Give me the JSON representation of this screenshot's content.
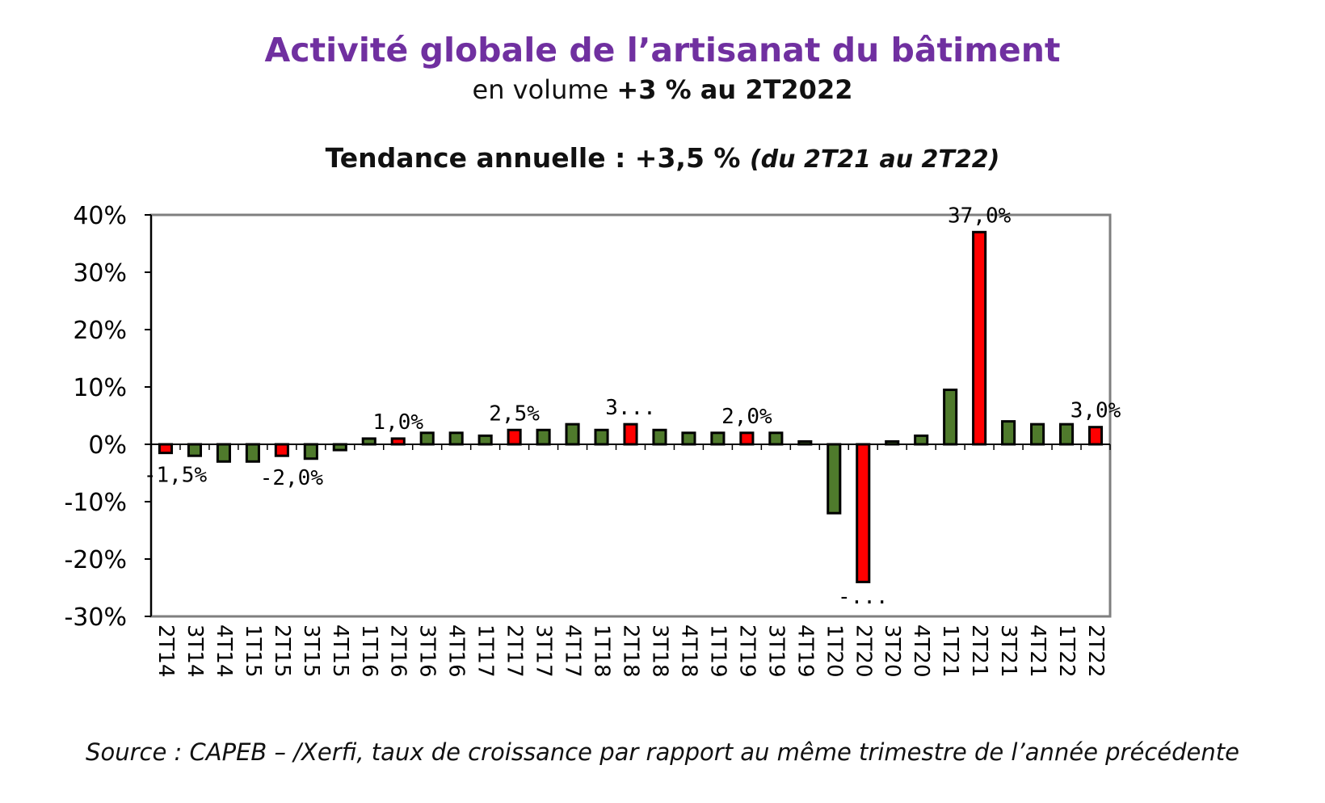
{
  "header": {
    "title": "Activité globale de l’artisanat du bâtiment",
    "subtitle_prefix": "en volume ",
    "subtitle_strong": "+3 % au 2T2022",
    "trend_main": "Tendance annuelle : +3,5 % ",
    "trend_paren": "(du 2T21 au 2T22)"
  },
  "footer": {
    "source": "Source : CAPEB – /Xerfi, taux de croissance par rapport au même trimestre de l’année précédente"
  },
  "colors": {
    "title": "#7030a0",
    "green": "#4f7a2c",
    "red": "#ff0000",
    "frame": "#7f7f7f"
  },
  "chart_data": {
    "type": "bar",
    "title": "",
    "xlabel": "",
    "ylabel": "",
    "ylim": [
      -30,
      40
    ],
    "yticks": [
      40,
      30,
      20,
      10,
      0,
      -10,
      -20,
      -30
    ],
    "ytick_labels": [
      "40%",
      "30%",
      "20%",
      "10%",
      "0%",
      "-10%",
      "-20%",
      "-30%"
    ],
    "grid": false,
    "categories": [
      "2T14",
      "3T14",
      "4T14",
      "1T15",
      "2T15",
      "3T15",
      "4T15",
      "1T16",
      "2T16",
      "3T16",
      "4T16",
      "1T17",
      "2T17",
      "3T17",
      "4T17",
      "1T18",
      "2T18",
      "3T18",
      "4T18",
      "1T19",
      "2T19",
      "3T19",
      "4T19",
      "1T20",
      "2T20",
      "3T20",
      "4T20",
      "1T21",
      "2T21",
      "3T21",
      "4T21",
      "1T22",
      "2T22"
    ],
    "values": [
      -1.5,
      -2.0,
      -3.0,
      -3.0,
      -2.0,
      -2.5,
      -1.0,
      1.0,
      1.0,
      2.0,
      2.0,
      1.5,
      2.5,
      2.5,
      3.5,
      2.5,
      3.5,
      2.5,
      2.0,
      2.0,
      2.0,
      2.0,
      0.5,
      -12.0,
      -24.0,
      0.5,
      1.5,
      9.5,
      37.0,
      4.0,
      3.5,
      3.5,
      3.0
    ],
    "bar_colors": [
      "red",
      "green",
      "green",
      "green",
      "red",
      "green",
      "green",
      "green",
      "red",
      "green",
      "green",
      "green",
      "red",
      "green",
      "green",
      "green",
      "red",
      "green",
      "green",
      "green",
      "red",
      "green",
      "green",
      "green",
      "red",
      "green",
      "green",
      "green",
      "red",
      "green",
      "green",
      "green",
      "red"
    ],
    "data_labels": [
      {
        "index": 0,
        "text": "-1,5%"
      },
      {
        "index": 4,
        "text": "-2,0%"
      },
      {
        "index": 8,
        "text": "1,0%"
      },
      {
        "index": 12,
        "text": "2,5%"
      },
      {
        "index": 16,
        "text": "3..."
      },
      {
        "index": 20,
        "text": "2,0%"
      },
      {
        "index": 24,
        "text": "-..."
      },
      {
        "index": 28,
        "text": "37,0%"
      },
      {
        "index": 32,
        "text": "3,0%"
      }
    ]
  }
}
